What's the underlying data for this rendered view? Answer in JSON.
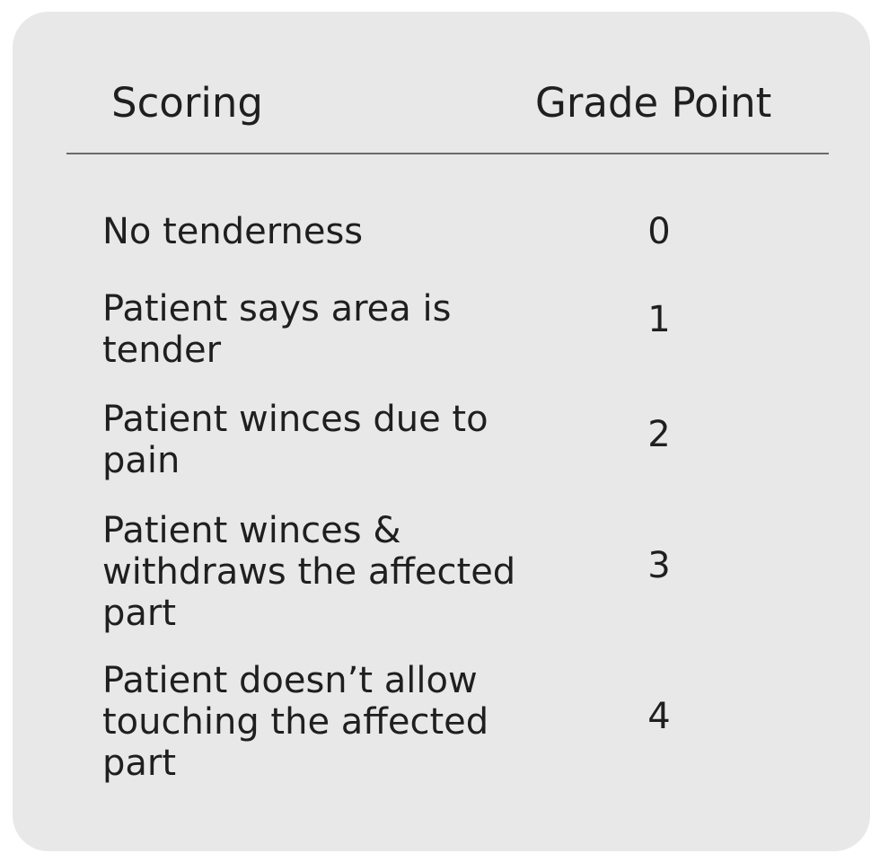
{
  "table": {
    "headers": {
      "scoring": "Scoring",
      "grade_point": "Grade Point"
    },
    "rows": [
      {
        "scoring": "No tenderness",
        "grade": "0"
      },
      {
        "scoring": "Patient says area is tender",
        "grade": "1"
      },
      {
        "scoring": "Patient winces due to pain",
        "grade": "2"
      },
      {
        "scoring": "Patient winces & withdraws the affected part",
        "grade": "3"
      },
      {
        "scoring": "Patient doesn’t allow touching the affected part",
        "grade": "4"
      }
    ]
  }
}
